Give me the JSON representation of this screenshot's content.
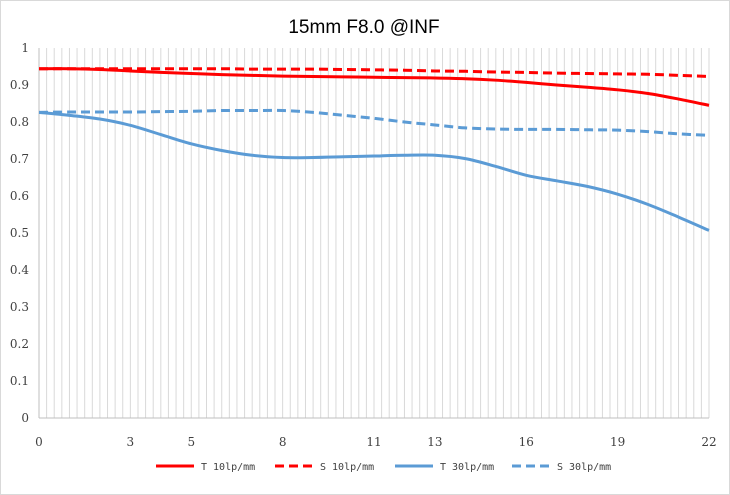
{
  "chart_data": {
    "type": "line",
    "title": "15mm F8.0 @INF",
    "xlabel": "",
    "ylabel": "",
    "xlim": [
      0,
      22
    ],
    "ylim": [
      0,
      1
    ],
    "x_ticks": [
      0,
      3,
      5,
      8,
      11,
      13,
      16,
      19,
      22
    ],
    "y_ticks": [
      0,
      0.1,
      0.2,
      0.3,
      0.4,
      0.5,
      0.6,
      0.7,
      0.8,
      0.9,
      1
    ],
    "y_tick_labels": [
      "0",
      "0.1",
      "0.2",
      "0.3",
      "0.4",
      "0.5",
      "0.6",
      "0.7",
      "0.8",
      "0.9",
      "1"
    ],
    "grid": "vertical",
    "legend_position": "bottom",
    "series": [
      {
        "name": "T 10lp/mm",
        "color": "#ff0000",
        "dash": "solid",
        "x": [
          0,
          1,
          2,
          3,
          4,
          5,
          6,
          7,
          8,
          9,
          10,
          11,
          12,
          13,
          14,
          15,
          16,
          17,
          18,
          19,
          20,
          21,
          22
        ],
        "y": [
          0.944,
          0.944,
          0.942,
          0.938,
          0.934,
          0.931,
          0.928,
          0.926,
          0.924,
          0.923,
          0.922,
          0.921,
          0.92,
          0.919,
          0.917,
          0.913,
          0.907,
          0.9,
          0.894,
          0.887,
          0.877,
          0.862,
          0.845
        ]
      },
      {
        "name": "S 10lp/mm",
        "color": "#ff0000",
        "dash": "dashed",
        "x": [
          0,
          1,
          2,
          3,
          4,
          5,
          6,
          7,
          8,
          9,
          10,
          11,
          12,
          13,
          14,
          15,
          16,
          17,
          18,
          19,
          20,
          21,
          22
        ],
        "y": [
          0.944,
          0.944,
          0.944,
          0.944,
          0.944,
          0.944,
          0.944,
          0.943,
          0.943,
          0.943,
          0.942,
          0.941,
          0.94,
          0.938,
          0.937,
          0.935,
          0.934,
          0.932,
          0.931,
          0.93,
          0.929,
          0.926,
          0.923
        ]
      },
      {
        "name": "T 30lp/mm",
        "color": "#5b9bd5",
        "dash": "solid",
        "x": [
          0,
          1,
          2,
          3,
          4,
          5,
          6,
          7,
          8,
          9,
          10,
          11,
          12,
          13,
          14,
          15,
          16,
          17,
          18,
          19,
          20,
          21,
          22
        ],
        "y": [
          0.826,
          0.818,
          0.808,
          0.791,
          0.766,
          0.741,
          0.723,
          0.71,
          0.704,
          0.704,
          0.706,
          0.708,
          0.71,
          0.71,
          0.701,
          0.68,
          0.656,
          0.641,
          0.626,
          0.605,
          0.577,
          0.543,
          0.507
        ]
      },
      {
        "name": "S 30lp/mm",
        "color": "#5b9bd5",
        "dash": "dashed",
        "x": [
          0,
          1,
          2,
          3,
          4,
          5,
          6,
          7,
          8,
          9,
          10,
          11,
          12,
          13,
          14,
          15,
          16,
          17,
          18,
          19,
          20,
          21,
          22
        ],
        "y": [
          0.826,
          0.827,
          0.827,
          0.827,
          0.828,
          0.829,
          0.831,
          0.831,
          0.831,
          0.826,
          0.818,
          0.81,
          0.8,
          0.792,
          0.784,
          0.781,
          0.78,
          0.78,
          0.779,
          0.778,
          0.774,
          0.768,
          0.764
        ]
      }
    ]
  }
}
